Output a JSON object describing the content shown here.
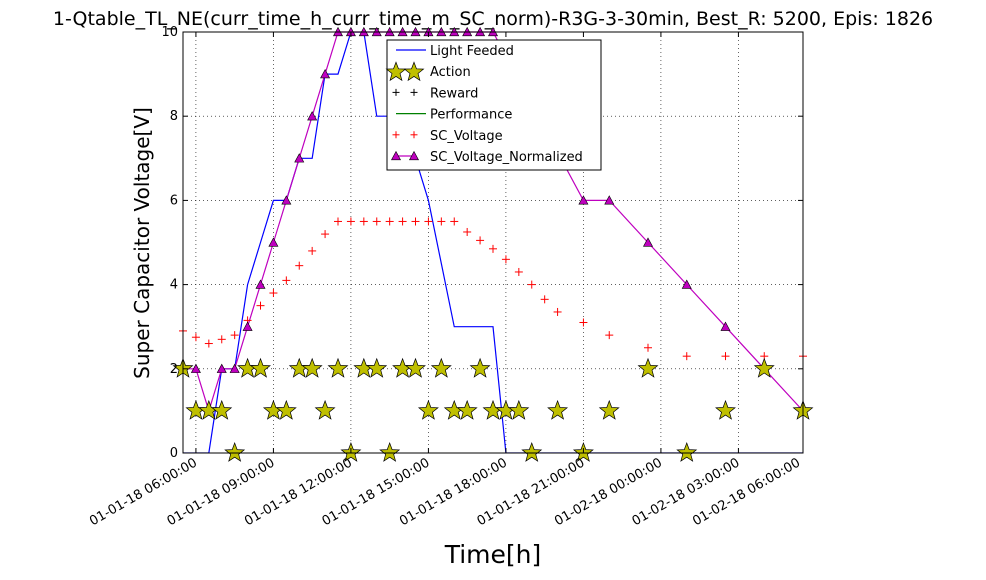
{
  "chart_data": {
    "type": "line",
    "title": "1-Qtable_TL_NE(curr_time_h_curr_time_m_SC_norm)-R3G-3-30min, Best_R: 5200, Epis: 1826",
    "xlabel": "Time[h]",
    "ylabel": "Super Capacitor Voltage[V]",
    "xlim_hours": [
      5.5,
      29.5
    ],
    "ylim": [
      0,
      10
    ],
    "yticks": [
      0,
      2,
      4,
      6,
      8,
      10
    ],
    "xticks": [
      {
        "hour": 6,
        "label": "01-01-18 06:00:00"
      },
      {
        "hour": 9,
        "label": "01-01-18 09:00:00"
      },
      {
        "hour": 12,
        "label": "01-01-18 12:00:00"
      },
      {
        "hour": 15,
        "label": "01-01-18 15:00:00"
      },
      {
        "hour": 18,
        "label": "01-01-18 18:00:00"
      },
      {
        "hour": 21,
        "label": "01-01-18 21:00:00"
      },
      {
        "hour": 24,
        "label": "01-02-18 00:00:00"
      },
      {
        "hour": 27,
        "label": "01-02-18 03:00:00"
      },
      {
        "hour": 30,
        "label": "01-02-18 06:00:00"
      }
    ],
    "grid": true,
    "legend_position": "top-center",
    "series": [
      {
        "name": "Light Feeded",
        "style": "line",
        "color": "#0000ff",
        "x": [
          5.5,
          6.0,
          6.5,
          7.0,
          7.5,
          8.0,
          8.5,
          9.0,
          9.5,
          10.0,
          10.5,
          11.0,
          11.5,
          12.0,
          12.5,
          13.0,
          13.5,
          14.0,
          14.5,
          15.0,
          15.5,
          16.0,
          16.5,
          17.0,
          17.5,
          18.0,
          18.5,
          19.0,
          29.5
        ],
        "y": [
          0,
          0,
          0,
          2,
          2,
          4,
          5,
          6,
          6,
          7,
          7,
          9,
          9,
          10,
          10,
          8,
          8,
          8,
          7,
          6,
          4.5,
          3,
          3,
          3,
          3,
          0,
          0,
          0,
          0
        ]
      },
      {
        "name": "Action",
        "style": "star",
        "color": "#bfbf00",
        "x": [
          5.5,
          6.0,
          6.5,
          7.0,
          7.5,
          8.0,
          8.5,
          9.0,
          9.5,
          10.0,
          10.5,
          11.0,
          11.5,
          12.0,
          12.5,
          13.0,
          13.5,
          14.0,
          14.5,
          15.0,
          15.5,
          16.0,
          16.5,
          17.0,
          17.5,
          18.0,
          18.5,
          19.0,
          20.0,
          21.0,
          22.0,
          23.5,
          25.0,
          26.5,
          28.0,
          29.5
        ],
        "y": [
          2,
          1,
          1,
          1,
          0,
          2,
          2,
          1,
          1,
          2,
          2,
          1,
          2,
          0,
          2,
          2,
          0,
          2,
          2,
          1,
          2,
          1,
          1,
          2,
          1,
          1,
          1,
          0,
          1,
          0,
          1,
          2,
          0,
          1,
          2,
          1
        ]
      },
      {
        "name": "Reward",
        "style": "plus",
        "color": "#000000",
        "x": [],
        "y": []
      },
      {
        "name": "Performance",
        "style": "line",
        "color": "#008000",
        "x": [],
        "y": []
      },
      {
        "name": "SC_Voltage",
        "style": "plus",
        "color": "#ff0000",
        "x": [
          5.5,
          6.0,
          6.5,
          7.0,
          7.5,
          8.0,
          8.5,
          9.0,
          9.5,
          10.0,
          10.5,
          11.0,
          11.5,
          12.0,
          12.5,
          13.0,
          13.5,
          14.0,
          14.5,
          15.0,
          15.5,
          16.0,
          16.5,
          17.0,
          17.5,
          18.0,
          18.5,
          19.0,
          19.5,
          20.0,
          21.0,
          22.0,
          23.5,
          25.0,
          26.5,
          28.0,
          29.5
        ],
        "y": [
          2.9,
          2.75,
          2.6,
          2.7,
          2.8,
          3.15,
          3.5,
          3.8,
          4.1,
          4.45,
          4.8,
          5.2,
          5.5,
          5.5,
          5.5,
          5.5,
          5.5,
          5.5,
          5.5,
          5.5,
          5.5,
          5.5,
          5.25,
          5.05,
          4.85,
          4.6,
          4.3,
          4.0,
          3.65,
          3.35,
          3.1,
          2.8,
          2.5,
          2.3,
          2.3,
          2.3,
          2.3
        ]
      },
      {
        "name": "SC_Voltage_Normalized",
        "style": "triangle-line",
        "color": "#bf00bf",
        "x": [
          5.5,
          6.0,
          6.5,
          7.0,
          7.5,
          8.0,
          8.5,
          9.0,
          9.5,
          10.0,
          10.5,
          11.0,
          11.5,
          12.0,
          12.5,
          13.0,
          13.5,
          14.0,
          14.5,
          15.0,
          15.5,
          16.0,
          16.5,
          17.0,
          17.5,
          21.0,
          22.0,
          23.5,
          25.0,
          26.5,
          28.0,
          29.5
        ],
        "y": [
          2,
          2,
          1,
          2,
          2,
          3,
          4,
          5,
          6,
          7,
          8,
          9,
          10,
          10,
          10,
          10,
          10,
          10,
          10,
          10,
          10,
          10,
          10,
          10,
          10,
          6,
          6,
          5,
          4,
          3,
          2,
          1
        ]
      }
    ]
  }
}
